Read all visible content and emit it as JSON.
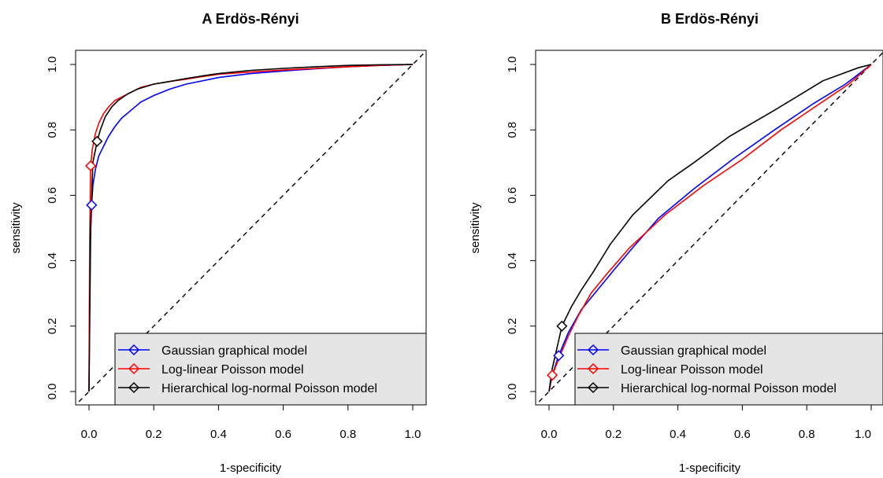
{
  "chart_data": [
    {
      "type": "line",
      "title": "A Erdös-Rényi",
      "xlabel": "1-specificity",
      "ylabel": "sensitivity",
      "xlim": [
        0,
        1
      ],
      "ylim": [
        0,
        1
      ],
      "xticks": [
        "0.0",
        "0.2",
        "0.4",
        "0.6",
        "0.8",
        "1.0"
      ],
      "yticks": [
        "0.0",
        "0.2",
        "0.4",
        "0.6",
        "0.8",
        "1.0"
      ],
      "grid": false,
      "legend_position": "bottom-right",
      "reference_line": {
        "style": "dashed",
        "points": [
          [
            0,
            0
          ],
          [
            1,
            1
          ]
        ]
      },
      "series": [
        {
          "name": "Gaussian graphical model",
          "color": "#0000ff",
          "marker": {
            "shape": "diamond",
            "x": 0.008,
            "y": 0.57
          },
          "x": [
            0,
            0.002,
            0.004,
            0.008,
            0.012,
            0.02,
            0.03,
            0.045,
            0.06,
            0.08,
            0.1,
            0.13,
            0.16,
            0.2,
            0.25,
            0.3,
            0.4,
            0.5,
            0.6,
            0.7,
            0.8,
            0.9,
            1.0
          ],
          "y": [
            0,
            0.3,
            0.45,
            0.57,
            0.63,
            0.68,
            0.72,
            0.75,
            0.78,
            0.81,
            0.835,
            0.86,
            0.885,
            0.905,
            0.925,
            0.94,
            0.96,
            0.972,
            0.98,
            0.987,
            0.993,
            0.997,
            1.0
          ]
        },
        {
          "name": "Log-linear Poisson model",
          "color": "#ff0000",
          "marker": {
            "shape": "diamond",
            "x": 0.005,
            "y": 0.69
          },
          "x": [
            0,
            0.002,
            0.005,
            0.01,
            0.02,
            0.03,
            0.045,
            0.06,
            0.08,
            0.1,
            0.13,
            0.16,
            0.2,
            0.25,
            0.3,
            0.35,
            0.4,
            0.5,
            0.6,
            0.7,
            0.8,
            0.9,
            1.0
          ],
          "y": [
            0,
            0.45,
            0.69,
            0.74,
            0.79,
            0.82,
            0.85,
            0.87,
            0.89,
            0.9,
            0.915,
            0.93,
            0.94,
            0.948,
            0.955,
            0.963,
            0.97,
            0.977,
            0.983,
            0.988,
            0.993,
            0.997,
            1.0
          ]
        },
        {
          "name": "Hierarchical log-normal Poisson model",
          "color": "#000000",
          "marker": {
            "shape": "diamond",
            "x": 0.025,
            "y": 0.765
          },
          "x": [
            0,
            0.005,
            0.012,
            0.025,
            0.035,
            0.05,
            0.07,
            0.09,
            0.12,
            0.15,
            0.2,
            0.25,
            0.3,
            0.35,
            0.4,
            0.5,
            0.6,
            0.7,
            0.8,
            0.9,
            1.0
          ],
          "y": [
            0,
            0.5,
            0.7,
            0.765,
            0.8,
            0.84,
            0.87,
            0.89,
            0.91,
            0.925,
            0.94,
            0.948,
            0.957,
            0.965,
            0.972,
            0.982,
            0.988,
            0.993,
            0.997,
            0.999,
            1.0
          ]
        }
      ]
    },
    {
      "type": "line",
      "title": "B Erdös-Rényi",
      "xlabel": "1-specificity",
      "ylabel": "sensitivity",
      "xlim": [
        0,
        1
      ],
      "ylim": [
        0,
        1
      ],
      "xticks": [
        "0.0",
        "0.2",
        "0.4",
        "0.6",
        "0.8",
        "1.0"
      ],
      "yticks": [
        "0.0",
        "0.2",
        "0.4",
        "0.6",
        "0.8",
        "1.0"
      ],
      "grid": false,
      "legend_position": "bottom-right",
      "reference_line": {
        "style": "dashed",
        "points": [
          [
            0,
            0
          ],
          [
            1,
            1
          ]
        ]
      },
      "series": [
        {
          "name": "Gaussian graphical model",
          "color": "#0000ff",
          "marker": {
            "shape": "diamond",
            "x": 0.03,
            "y": 0.11
          },
          "x": [
            0,
            0.01,
            0.03,
            0.06,
            0.1,
            0.15,
            0.2,
            0.26,
            0.34,
            0.45,
            0.57,
            0.7,
            0.82,
            0.92,
            1.0
          ],
          "y": [
            0,
            0.05,
            0.11,
            0.18,
            0.25,
            0.31,
            0.37,
            0.44,
            0.53,
            0.62,
            0.71,
            0.8,
            0.88,
            0.94,
            1.0
          ]
        },
        {
          "name": "Log-linear Poisson model",
          "color": "#ff0000",
          "marker": {
            "shape": "diamond",
            "x": 0.01,
            "y": 0.05
          },
          "x": [
            0,
            0.01,
            0.03,
            0.06,
            0.09,
            0.13,
            0.18,
            0.25,
            0.36,
            0.48,
            0.6,
            0.72,
            0.84,
            0.93,
            1.0
          ],
          "y": [
            0,
            0.05,
            0.1,
            0.17,
            0.23,
            0.3,
            0.36,
            0.44,
            0.54,
            0.63,
            0.71,
            0.8,
            0.88,
            0.94,
            1.0
          ]
        },
        {
          "name": "Hierarchical log-normal Poisson model",
          "color": "#000000",
          "marker": {
            "shape": "diamond",
            "x": 0.04,
            "y": 0.2
          },
          "x": [
            0,
            0.01,
            0.04,
            0.07,
            0.1,
            0.14,
            0.19,
            0.26,
            0.37,
            0.45,
            0.56,
            0.7,
            0.85,
            0.96,
            1.0
          ],
          "y": [
            0,
            0.07,
            0.2,
            0.26,
            0.31,
            0.37,
            0.45,
            0.54,
            0.645,
            0.7,
            0.78,
            0.86,
            0.95,
            0.99,
            1.0
          ]
        }
      ]
    }
  ]
}
